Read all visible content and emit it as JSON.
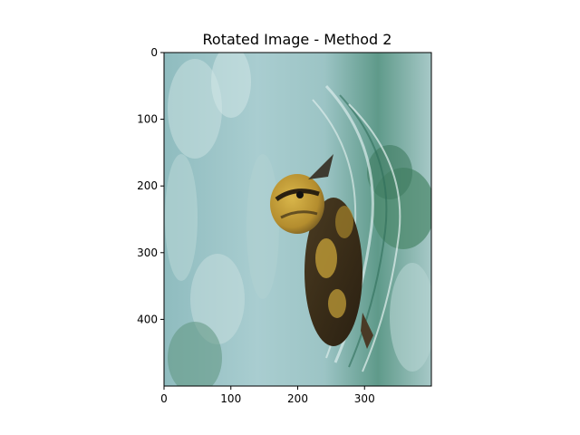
{
  "chart_data": {
    "type": "image",
    "title": "Rotated Image - Method 2",
    "xlabel": "",
    "ylabel": "",
    "xlim": [
      0,
      400
    ],
    "ylim": [
      500,
      0
    ],
    "x_ticks": [
      0,
      100,
      200,
      300
    ],
    "y_ticks": [
      0,
      100,
      200,
      300,
      400
    ],
    "grid": false,
    "image_subject": "duckling-swimming-in-water",
    "colors": {
      "water_light": "#a9cdd0",
      "water_mid": "#7fb0b2",
      "water_dark": "#4f8a7c",
      "duckling_yellow": "#c9a43a",
      "duckling_brown": "#3b2f1c",
      "axis": "#000000"
    }
  }
}
